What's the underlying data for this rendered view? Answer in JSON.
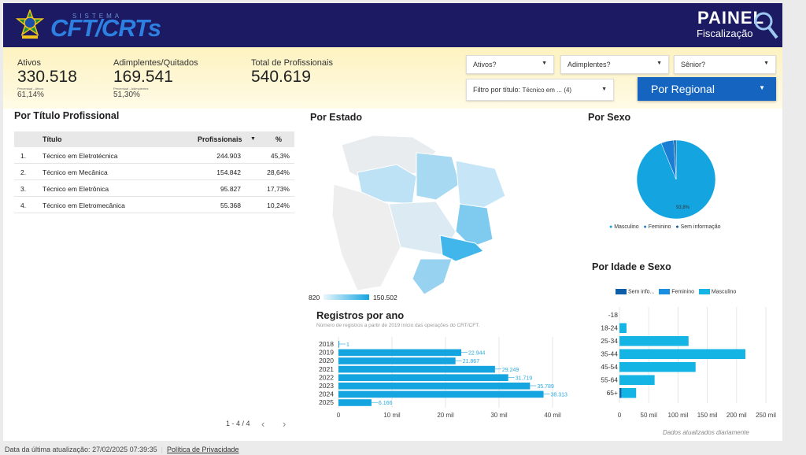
{
  "header": {
    "logo_small": "SISTEMA",
    "logo_main": "CFT/CRTs",
    "panel_title": "PAINEL",
    "panel_subtitle": "Fiscalização",
    "header_color": "#1b1a63"
  },
  "kpis": [
    {
      "label": "Ativos",
      "value": "330.518",
      "sub": "Percentual - Ativos",
      "pct": "61,14%"
    },
    {
      "label": "Adimplentes/Quitados",
      "value": "169.541",
      "sub": "Percentual - Adimplentes",
      "pct": "51,30%"
    },
    {
      "label": "Total de Profissionais",
      "value": "540.619"
    }
  ],
  "filters": {
    "ativos": "Ativos?",
    "adimplentes": "Adimplentes?",
    "senior": "Sênior?",
    "titulo_label": "Filtro por título:",
    "titulo_value": "Técnico em ...",
    "titulo_count": "(4)",
    "regional": "Por Regional"
  },
  "titulo_table": {
    "title": "Por Título Profissional",
    "headers": [
      "Título",
      "Profissionais",
      "%"
    ],
    "rows": [
      {
        "n": "1.",
        "titulo": "Técnico em Eletrotécnica",
        "prof": "244.903",
        "pct": "45,3%"
      },
      {
        "n": "2.",
        "titulo": "Técnico em Mecânica",
        "prof": "154.842",
        "pct": "28,64%"
      },
      {
        "n": "3.",
        "titulo": "Técnico em Eletrônica",
        "prof": "95.827",
        "pct": "17,73%"
      },
      {
        "n": "4.",
        "titulo": "Técnico em Eletromecânica",
        "prof": "55.368",
        "pct": "10,24%"
      }
    ],
    "pagination": "1 - 4 / 4"
  },
  "estado": {
    "title": "Por Estado",
    "min": "820",
    "max": "150.502"
  },
  "sexo": {
    "title": "Por Sexo",
    "pie_label": "93,8%",
    "legend": [
      "Masculino",
      "Feminino",
      "Sem informação"
    ]
  },
  "idade": {
    "title": "Por Idade e Sexo",
    "legend": [
      "Sem info...",
      "Feminino",
      "Masculino"
    ],
    "note": "Dados atualizados diariamente"
  },
  "registros": {
    "title": "Registros por ano",
    "subtitle": "Número de registros a partir de 2019 início das operações do CRT/CFT."
  },
  "footer": {
    "updated": "Data da última atualização: 27/02/2025 07:39:35",
    "privacy": "Política de Privacidade"
  },
  "chart_data": [
    {
      "type": "pie",
      "categories": [
        "Masculino",
        "Feminino",
        "Sem informação"
      ],
      "values": [
        93.8,
        5.2,
        1.0
      ],
      "colors": [
        "#14a5e0",
        "#1a7fd4",
        "#0d5ea8"
      ]
    },
    {
      "type": "bar",
      "orientation": "horizontal",
      "categories": [
        "2018",
        "2019",
        "2020",
        "2021",
        "2022",
        "2023",
        "2024",
        "2025"
      ],
      "values": [
        1,
        22944,
        21867,
        29249,
        31719,
        35789,
        38313,
        6166
      ],
      "value_labels": [
        "1",
        "22.944",
        "21.867",
        "29.249",
        "31.719",
        "35.789",
        "38.313",
        "6.166"
      ],
      "xticks": [
        "0",
        "10 mil",
        "20 mil",
        "30 mil",
        "40 mil"
      ],
      "xlim": [
        0,
        40000
      ]
    },
    {
      "type": "bar",
      "orientation": "horizontal",
      "categories": [
        "-18",
        "18-24",
        "25-34",
        "35-44",
        "45-54",
        "55-64",
        "65+"
      ],
      "series": [
        {
          "name": "Sem info...",
          "values": [
            0,
            0,
            0,
            0,
            0,
            0,
            3500
          ]
        },
        {
          "name": "Feminino",
          "values": [
            0,
            0,
            0,
            0,
            0,
            0,
            0
          ]
        },
        {
          "name": "Masculino",
          "values": [
            0,
            12000,
            118000,
            215000,
            130000,
            60000,
            25000
          ]
        }
      ],
      "xticks": [
        "0",
        "50 mil",
        "100 mil",
        "150 mil",
        "200 mil",
        "250 mil"
      ],
      "xlim": [
        0,
        250000
      ]
    }
  ]
}
